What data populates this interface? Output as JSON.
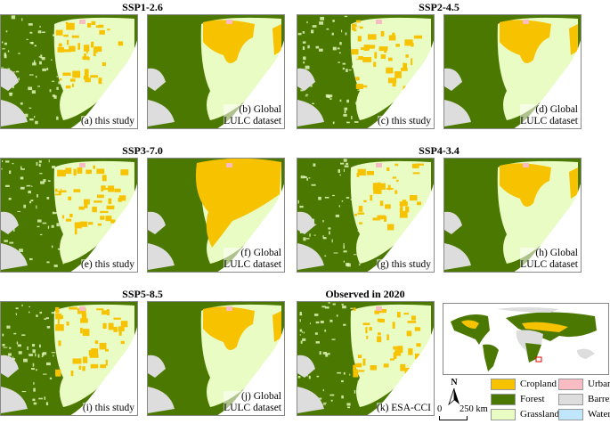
{
  "titles": [
    "SSP1-2.6",
    "SSP2-4.5",
    "SSP3-7.0",
    "SSP4-3.4",
    "SSP5-8.5",
    "Observed in 2020"
  ],
  "panels": [
    {
      "label": "(a) this study",
      "kind": "study"
    },
    {
      "label": "(b) Global\nLULC dataset",
      "kind": "dataset"
    },
    {
      "label": "(c) this study",
      "kind": "study"
    },
    {
      "label": "(d) Global\nLULC dataset",
      "kind": "dataset"
    },
    {
      "label": "(e) this study",
      "kind": "study"
    },
    {
      "label": "(f) Global\nLULC dataset",
      "kind": "dataset-crop"
    },
    {
      "label": "(g) this study",
      "kind": "study"
    },
    {
      "label": "(h) Global\nLULC dataset",
      "kind": "dataset"
    },
    {
      "label": "(i) this study",
      "kind": "study"
    },
    {
      "label": "(j) Global\nLULC dataset",
      "kind": "dataset"
    },
    {
      "label": "(k) ESA-CCI",
      "kind": "study"
    }
  ],
  "legend": [
    {
      "label": "Cropland",
      "color": "#f7c200"
    },
    {
      "label": "Urban",
      "color": "#f9bcc3"
    },
    {
      "label": "Forest",
      "color": "#4b7800"
    },
    {
      "label": "Barren",
      "color": "#dddddd"
    },
    {
      "label": "Grassland",
      "color": "#e8fcc4"
    },
    {
      "label": "Water",
      "color": "#bfe6fb"
    }
  ],
  "north": "N",
  "scale": {
    "start": "0",
    "end": "250 km"
  }
}
